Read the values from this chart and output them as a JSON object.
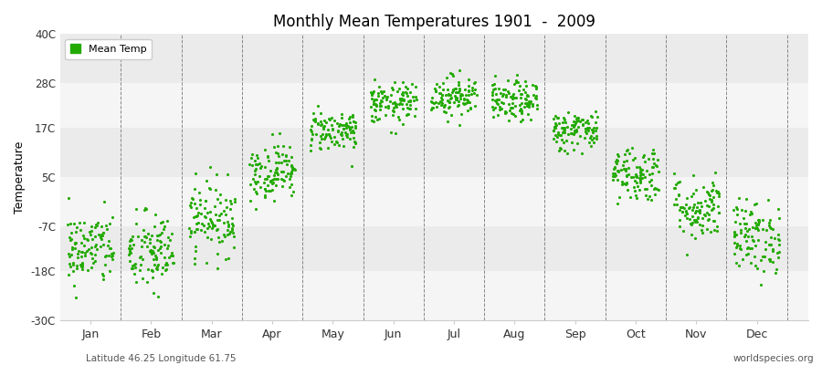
{
  "title": "Monthly Mean Temperatures 1901  -  2009",
  "ylabel": "Temperature",
  "xlabel_labels": [
    "Jan",
    "Feb",
    "Mar",
    "Apr",
    "May",
    "Jun",
    "Jul",
    "Aug",
    "Sep",
    "Oct",
    "Nov",
    "Dec"
  ],
  "ytick_labels": [
    "-30C",
    "-18C",
    "-7C",
    "5C",
    "17C",
    "28C",
    "40C"
  ],
  "ytick_values": [
    -30,
    -18,
    -7,
    5,
    17,
    28,
    40
  ],
  "ylim": [
    -30,
    40
  ],
  "dot_color": "#22AA00",
  "background_color": "#ffffff",
  "band_colors": [
    "#f5f5f5",
    "#ebebeb"
  ],
  "legend_label": "Mean Temp",
  "footer_left": "Latitude 46.25 Longitude 61.75",
  "footer_right": "worldspecies.org",
  "monthly_means": [
    -12.5,
    -13.5,
    -5.0,
    6.5,
    16.5,
    23.0,
    25.0,
    23.5,
    16.5,
    6.0,
    -2.5,
    -9.5
  ],
  "monthly_stds": [
    4.5,
    5.0,
    4.5,
    3.5,
    2.5,
    2.5,
    2.5,
    2.5,
    2.5,
    3.5,
    4.0,
    4.5
  ],
  "n_years": 109,
  "seed": 42
}
